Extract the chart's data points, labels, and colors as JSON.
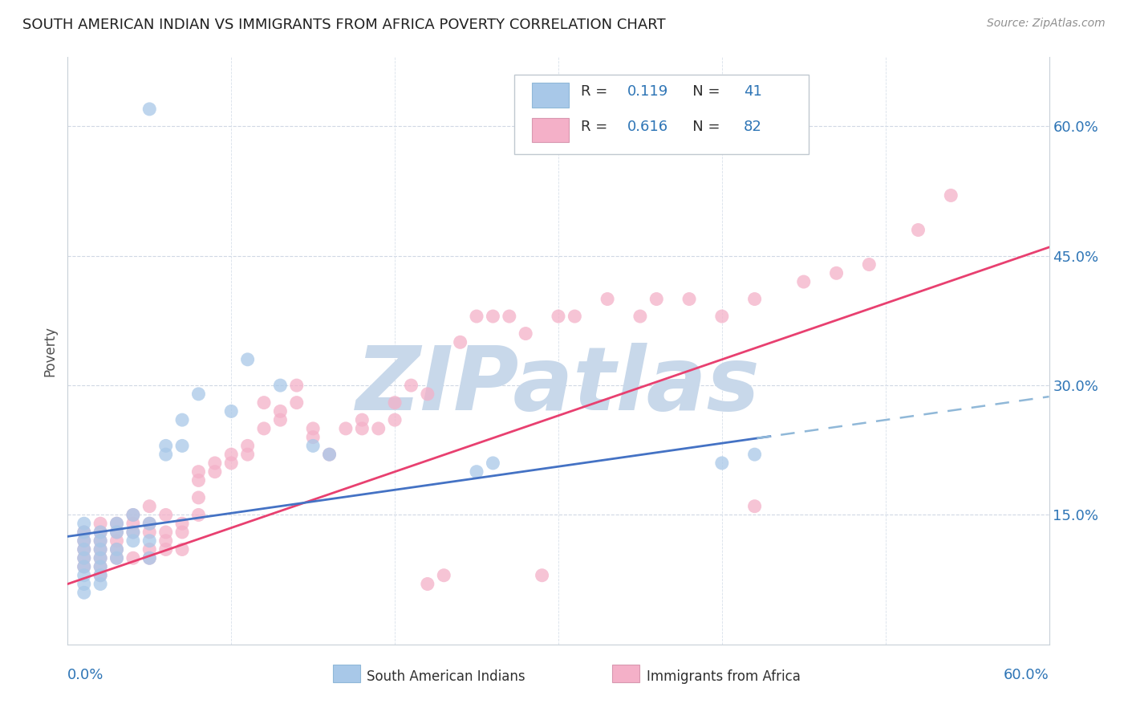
{
  "title": "SOUTH AMERICAN INDIAN VS IMMIGRANTS FROM AFRICA POVERTY CORRELATION CHART",
  "source": "Source: ZipAtlas.com",
  "ylabel": "Poverty",
  "ytick_values": [
    0.15,
    0.3,
    0.45,
    0.6
  ],
  "ytick_labels": [
    "15.0%",
    "30.0%",
    "45.0%",
    "60.0%"
  ],
  "xlim": [
    0.0,
    0.6
  ],
  "ylim": [
    0.0,
    0.68
  ],
  "legend_label1": "South American Indians",
  "legend_label2": "Immigrants from Africa",
  "r1": 0.119,
  "n1": 41,
  "r2": 0.616,
  "n2": 82,
  "color_blue": "#A8C8E8",
  "color_pink": "#F4B0C8",
  "color_blue_line": "#4472C4",
  "color_pink_line": "#E84070",
  "color_blue_dashed": "#90B8D8",
  "watermark": "ZIPatlas",
  "watermark_color": "#C8D8EA",
  "legend_R_color": "#000000",
  "legend_N_color": "#2E75B6",
  "blue_x": [
    0.01,
    0.01,
    0.01,
    0.01,
    0.01,
    0.01,
    0.01,
    0.01,
    0.01,
    0.02,
    0.02,
    0.02,
    0.02,
    0.02,
    0.02,
    0.02,
    0.03,
    0.03,
    0.03,
    0.03,
    0.04,
    0.04,
    0.04,
    0.05,
    0.05,
    0.05,
    0.06,
    0.06,
    0.07,
    0.07,
    0.08,
    0.1,
    0.11,
    0.13,
    0.15,
    0.16,
    0.25,
    0.26,
    0.4,
    0.42,
    0.05
  ],
  "blue_y": [
    0.12,
    0.13,
    0.14,
    0.11,
    0.1,
    0.09,
    0.08,
    0.07,
    0.06,
    0.13,
    0.12,
    0.11,
    0.1,
    0.09,
    0.08,
    0.07,
    0.14,
    0.13,
    0.11,
    0.1,
    0.15,
    0.13,
    0.12,
    0.14,
    0.12,
    0.1,
    0.23,
    0.22,
    0.26,
    0.23,
    0.29,
    0.27,
    0.33,
    0.3,
    0.23,
    0.22,
    0.2,
    0.21,
    0.21,
    0.22,
    0.62
  ],
  "pink_x": [
    0.01,
    0.01,
    0.01,
    0.01,
    0.01,
    0.02,
    0.02,
    0.02,
    0.02,
    0.02,
    0.02,
    0.02,
    0.03,
    0.03,
    0.03,
    0.03,
    0.03,
    0.04,
    0.04,
    0.04,
    0.04,
    0.05,
    0.05,
    0.05,
    0.05,
    0.05,
    0.06,
    0.06,
    0.06,
    0.06,
    0.07,
    0.07,
    0.07,
    0.08,
    0.08,
    0.08,
    0.08,
    0.09,
    0.09,
    0.1,
    0.1,
    0.11,
    0.11,
    0.12,
    0.12,
    0.13,
    0.13,
    0.14,
    0.14,
    0.15,
    0.15,
    0.16,
    0.17,
    0.18,
    0.18,
    0.19,
    0.2,
    0.2,
    0.21,
    0.22,
    0.24,
    0.25,
    0.26,
    0.27,
    0.28,
    0.3,
    0.31,
    0.33,
    0.35,
    0.36,
    0.38,
    0.4,
    0.42,
    0.45,
    0.47,
    0.49,
    0.52,
    0.54,
    0.23,
    0.29,
    0.22,
    0.42
  ],
  "pink_y": [
    0.13,
    0.12,
    0.11,
    0.1,
    0.09,
    0.14,
    0.13,
    0.12,
    0.11,
    0.1,
    0.09,
    0.08,
    0.14,
    0.13,
    0.12,
    0.11,
    0.1,
    0.15,
    0.14,
    0.13,
    0.1,
    0.16,
    0.14,
    0.13,
    0.11,
    0.1,
    0.15,
    0.13,
    0.12,
    0.11,
    0.14,
    0.13,
    0.11,
    0.2,
    0.19,
    0.17,
    0.15,
    0.21,
    0.2,
    0.22,
    0.21,
    0.23,
    0.22,
    0.28,
    0.25,
    0.27,
    0.26,
    0.3,
    0.28,
    0.25,
    0.24,
    0.22,
    0.25,
    0.26,
    0.25,
    0.25,
    0.28,
    0.26,
    0.3,
    0.29,
    0.35,
    0.38,
    0.38,
    0.38,
    0.36,
    0.38,
    0.38,
    0.4,
    0.38,
    0.4,
    0.4,
    0.38,
    0.4,
    0.42,
    0.43,
    0.44,
    0.48,
    0.52,
    0.08,
    0.08,
    0.07,
    0.16
  ]
}
